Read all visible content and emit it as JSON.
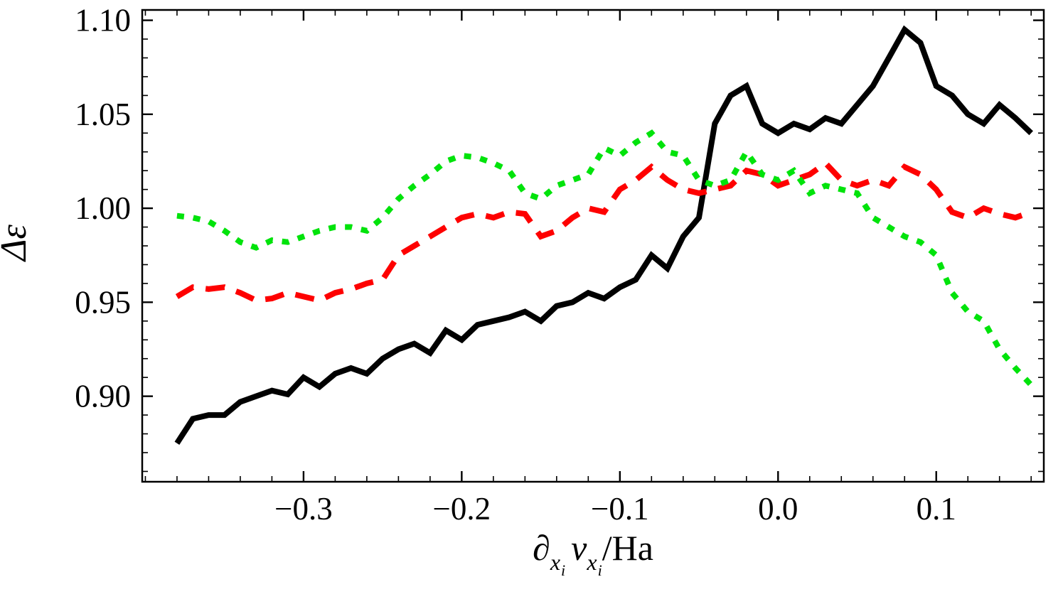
{
  "figure": {
    "background": "#ffffff"
  },
  "chart_data": {
    "type": "line",
    "title": "",
    "ylabel": "Δε",
    "xlabel_plain": "∂_{x_i} v_{x_i} / Ha",
    "xlabel_parts": {
      "partial_symbol": "∂",
      "partial_sub_main": "x",
      "partial_sub_index": "i",
      "v_symbol": "v",
      "v_sub_main": "x",
      "v_sub_index": "i",
      "denominator": "/Ha"
    },
    "xlim": [
      -0.402,
      0.168
    ],
    "ylim": [
      0.8545,
      1.1055
    ],
    "grid": false,
    "legend": "none",
    "frame": true,
    "x_minor_step": 0.02,
    "y_minor_step": 0.01,
    "x_ticks": [
      {
        "value": -0.3,
        "label": "−0.3"
      },
      {
        "value": -0.2,
        "label": "−0.2"
      },
      {
        "value": -0.1,
        "label": "−0.1"
      },
      {
        "value": 0.0,
        "label": "0.0"
      },
      {
        "value": 0.1,
        "label": "0.1"
      }
    ],
    "y_ticks": [
      {
        "value": 0.9,
        "label": "0.90"
      },
      {
        "value": 0.95,
        "label": "0.95"
      },
      {
        "value": 1.0,
        "label": "1.00"
      },
      {
        "value": 1.05,
        "label": "1.05"
      },
      {
        "value": 1.1,
        "label": "1.10"
      }
    ],
    "x": [
      -0.38,
      -0.37,
      -0.36,
      -0.35,
      -0.34,
      -0.33,
      -0.32,
      -0.31,
      -0.3,
      -0.29,
      -0.28,
      -0.27,
      -0.26,
      -0.25,
      -0.24,
      -0.23,
      -0.22,
      -0.21,
      -0.2,
      -0.19,
      -0.18,
      -0.17,
      -0.16,
      -0.15,
      -0.14,
      -0.13,
      -0.12,
      -0.11,
      -0.1,
      -0.09,
      -0.08,
      -0.07,
      -0.06,
      -0.05,
      -0.04,
      -0.03,
      -0.02,
      -0.01,
      0.0,
      0.01,
      0.02,
      0.03,
      0.04,
      0.05,
      0.06,
      0.07,
      0.08,
      0.09,
      0.1,
      0.11,
      0.12,
      0.13,
      0.14,
      0.15,
      0.16
    ],
    "series": [
      {
        "name": "black-solid",
        "color": "#000000",
        "dash": "none",
        "width": 8,
        "values": [
          0.875,
          0.888,
          0.89,
          0.89,
          0.897,
          0.9,
          0.903,
          0.901,
          0.91,
          0.905,
          0.912,
          0.915,
          0.912,
          0.92,
          0.925,
          0.928,
          0.923,
          0.935,
          0.93,
          0.938,
          0.94,
          0.942,
          0.945,
          0.94,
          0.948,
          0.95,
          0.955,
          0.952,
          0.958,
          0.962,
          0.975,
          0.968,
          0.985,
          0.995,
          1.045,
          1.06,
          1.065,
          1.045,
          1.04,
          1.045,
          1.042,
          1.048,
          1.045,
          1.055,
          1.065,
          1.08,
          1.095,
          1.088,
          1.065,
          1.06,
          1.05,
          1.045,
          1.055,
          1.048,
          1.04
        ]
      },
      {
        "name": "red-dashed",
        "color": "#fe0000",
        "dash": "27 17",
        "width": 8,
        "values": [
          0.953,
          0.958,
          0.957,
          0.958,
          0.955,
          0.951,
          0.952,
          0.955,
          0.953,
          0.951,
          0.955,
          0.957,
          0.96,
          0.962,
          0.975,
          0.98,
          0.985,
          0.99,
          0.995,
          0.997,
          0.995,
          0.998,
          0.997,
          0.985,
          0.988,
          0.995,
          1.0,
          0.998,
          1.01,
          1.015,
          1.022,
          1.015,
          1.01,
          1.008,
          1.01,
          1.012,
          1.02,
          1.018,
          1.012,
          1.015,
          1.018,
          1.024,
          1.015,
          1.012,
          1.015,
          1.012,
          1.022,
          1.018,
          1.01,
          0.998,
          0.995,
          1.0,
          0.997,
          0.995,
          0.998
        ]
      },
      {
        "name": "green-dotted",
        "color": "#00e30b",
        "dash": "10 13",
        "width": 8,
        "values": [
          0.996,
          0.995,
          0.993,
          0.988,
          0.982,
          0.979,
          0.983,
          0.982,
          0.985,
          0.988,
          0.99,
          0.99,
          0.988,
          0.995,
          1.005,
          1.012,
          1.018,
          1.025,
          1.028,
          1.027,
          1.024,
          1.02,
          1.008,
          1.005,
          1.012,
          1.015,
          1.018,
          1.032,
          1.028,
          1.035,
          1.04,
          1.03,
          1.028,
          1.015,
          1.012,
          1.015,
          1.03,
          1.018,
          1.015,
          1.02,
          1.008,
          1.012,
          1.01,
          1.008,
          0.995,
          0.99,
          0.985,
          0.982,
          0.975,
          0.955,
          0.945,
          0.94,
          0.925,
          0.915,
          0.906
        ]
      }
    ]
  }
}
